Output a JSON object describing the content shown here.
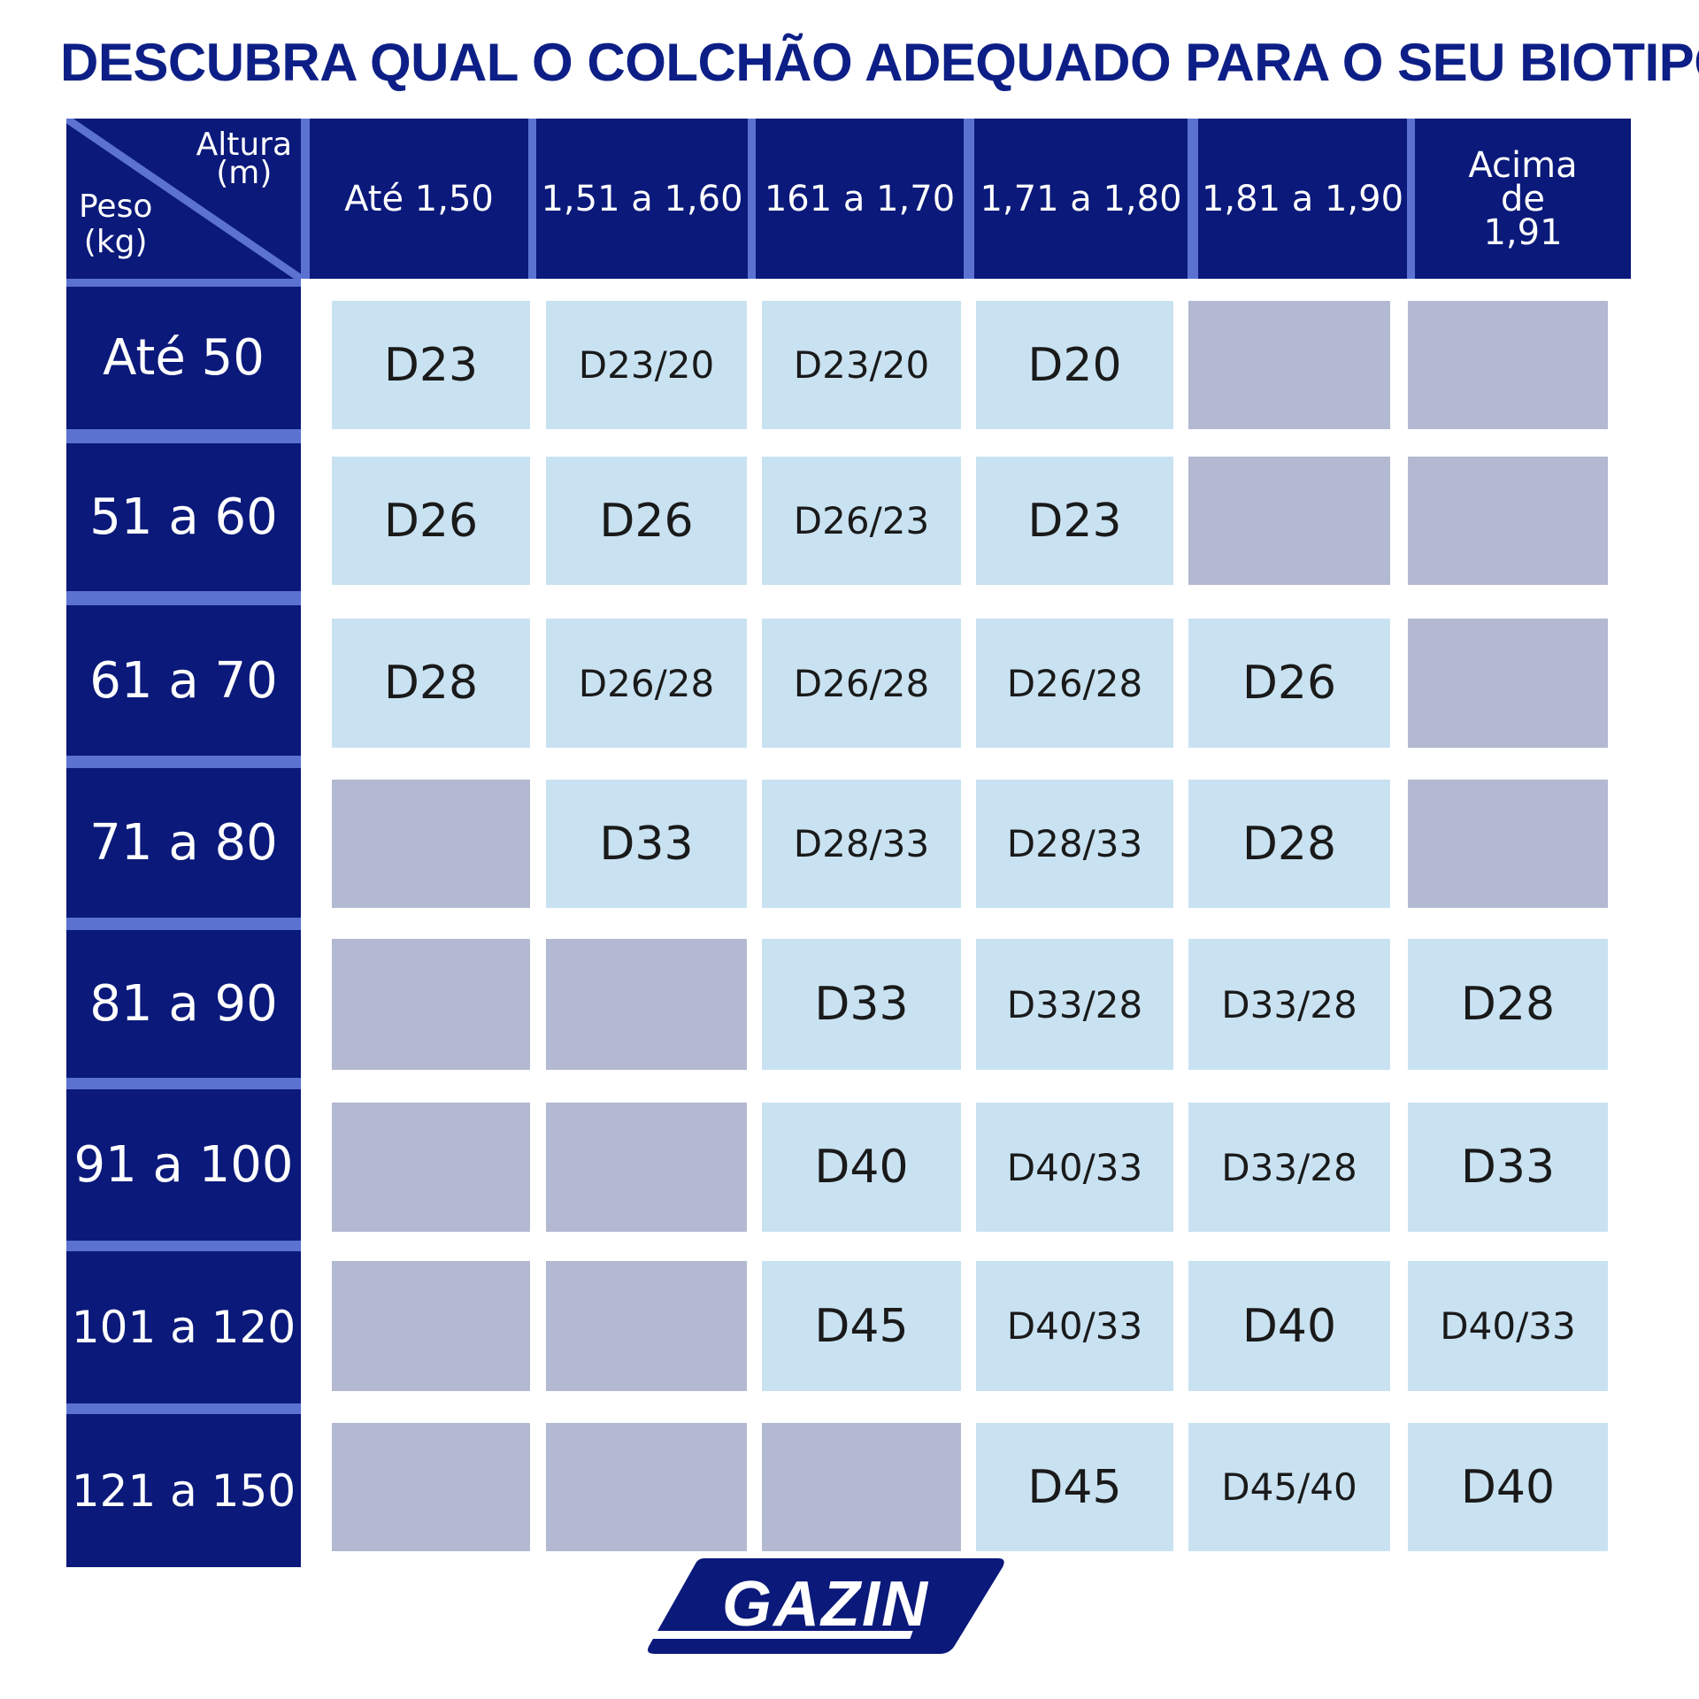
{
  "title": "DESCUBRA QUAL O COLCHÃO ADEQUADO PARA O SEU BIOTIPO:",
  "corner": {
    "height_label": "Altura",
    "height_unit": "(m)",
    "weight_label": "Peso",
    "weight_unit": "(kg)"
  },
  "columns": [
    "Até 1,50",
    "1,51 a 1,60",
    "161 a 1,70",
    "1,71 a 1,80",
    "1,81 a 1,90",
    "Acima de 1,91"
  ],
  "rows": [
    {
      "label": "Até 50",
      "cells": [
        "D23",
        "D23/20",
        "D23/20",
        "D20",
        null,
        null
      ]
    },
    {
      "label": "51 a 60",
      "cells": [
        "D26",
        "D26",
        "D26/23",
        "D23",
        null,
        null
      ]
    },
    {
      "label": "61 a 70",
      "cells": [
        "D28",
        "D26/28",
        "D26/28",
        "D26/28",
        "D26",
        null
      ]
    },
    {
      "label": "71 a 80",
      "cells": [
        null,
        "D33",
        "D28/33",
        "D28/33",
        "D28",
        null
      ]
    },
    {
      "label": "81 a 90",
      "cells": [
        null,
        null,
        "D33",
        "D33/28",
        "D33/28",
        "D28"
      ]
    },
    {
      "label": "91 a 100",
      "cells": [
        null,
        null,
        "D40",
        "D40/33",
        "D33/28",
        "D33"
      ]
    },
    {
      "label": "101 a 120",
      "cells": [
        null,
        null,
        "D45",
        "D40/33",
        "D40",
        "D40/33"
      ]
    },
    {
      "label": "121 a 150",
      "cells": [
        null,
        null,
        null,
        "D45",
        "D45/40",
        "D40"
      ]
    }
  ],
  "logo": {
    "text": "GAZIN"
  },
  "colors": {
    "navy": "#0a197a",
    "separator": "#5b72d1",
    "recommended_cell": "#c9e2f2",
    "unavailable_cell": "#b3b9d1",
    "title": "#0d1f86"
  }
}
